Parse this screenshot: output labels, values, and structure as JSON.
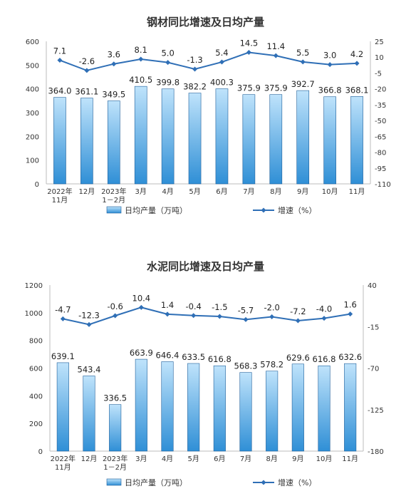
{
  "legend": {
    "bar_label": "日均产量（万吨）",
    "line_label": "增速（%）"
  },
  "colors": {
    "bar_fill_top": "#bfe3fb",
    "bar_fill_bottom": "#2f8fd6",
    "bar_stroke": "#1f5f9a",
    "line": "#2f6fb6",
    "grid": "#e6e6e6"
  },
  "chart_data": [
    {
      "type": "bar",
      "title": "钢材同比增速及日均产量",
      "categories": [
        [
          "2022年",
          "11月"
        ],
        [
          "12月"
        ],
        [
          "2023年",
          "1－2月"
        ],
        [
          "3月"
        ],
        [
          "4月"
        ],
        [
          "5月"
        ],
        [
          "6月"
        ],
        [
          "7月"
        ],
        [
          "8月"
        ],
        [
          "9月"
        ],
        [
          "10月"
        ],
        [
          "11月"
        ]
      ],
      "series": [
        {
          "name": "日均产量（万吨）",
          "axis": "left",
          "values": [
            364.0,
            361.1,
            349.5,
            410.5,
            399.8,
            382.2,
            400.3,
            375.9,
            375.9,
            392.7,
            366.8,
            368.1
          ]
        },
        {
          "name": "增速（%）",
          "axis": "right",
          "kind": "line",
          "values": [
            7.1,
            -2.6,
            3.6,
            8.1,
            5.0,
            -1.3,
            5.4,
            14.5,
            11.4,
            5.5,
            3.0,
            4.2
          ]
        }
      ],
      "ylim": [
        0,
        600
      ],
      "yticks": [
        0,
        100,
        200,
        300,
        400,
        500,
        600
      ],
      "y2lim": [
        -110,
        25
      ],
      "y2ticks": [
        25,
        10,
        -5,
        -20,
        -35,
        -50,
        -65,
        -80,
        -95,
        -110
      ],
      "grid": false,
      "legend": "bottom"
    },
    {
      "type": "bar",
      "title": "水泥同比增速及日均产量",
      "categories": [
        [
          "2022年",
          "11月"
        ],
        [
          "12月"
        ],
        [
          "2023年",
          "1－2月"
        ],
        [
          "3月"
        ],
        [
          "4月"
        ],
        [
          "5月"
        ],
        [
          "6月"
        ],
        [
          "7月"
        ],
        [
          "8月"
        ],
        [
          "9月"
        ],
        [
          "10月"
        ],
        [
          "11月"
        ]
      ],
      "series": [
        {
          "name": "日均产量（万吨）",
          "axis": "left",
          "values": [
            639.1,
            543.4,
            336.5,
            663.9,
            646.4,
            633.5,
            616.8,
            568.3,
            578.2,
            629.6,
            616.8,
            632.6
          ]
        },
        {
          "name": "增速（%）",
          "axis": "right",
          "kind": "line",
          "values": [
            -4.7,
            -12.3,
            -0.6,
            10.4,
            1.4,
            -0.4,
            -1.5,
            -5.7,
            -2.0,
            -7.2,
            -4.0,
            1.6
          ]
        }
      ],
      "ylim": [
        0,
        1200
      ],
      "yticks": [
        0,
        200,
        400,
        600,
        800,
        1000,
        1200
      ],
      "y2lim": [
        -180,
        40
      ],
      "y2ticks": [
        40,
        -15,
        -70,
        -125,
        -180
      ],
      "grid": false,
      "legend": "bottom"
    }
  ]
}
